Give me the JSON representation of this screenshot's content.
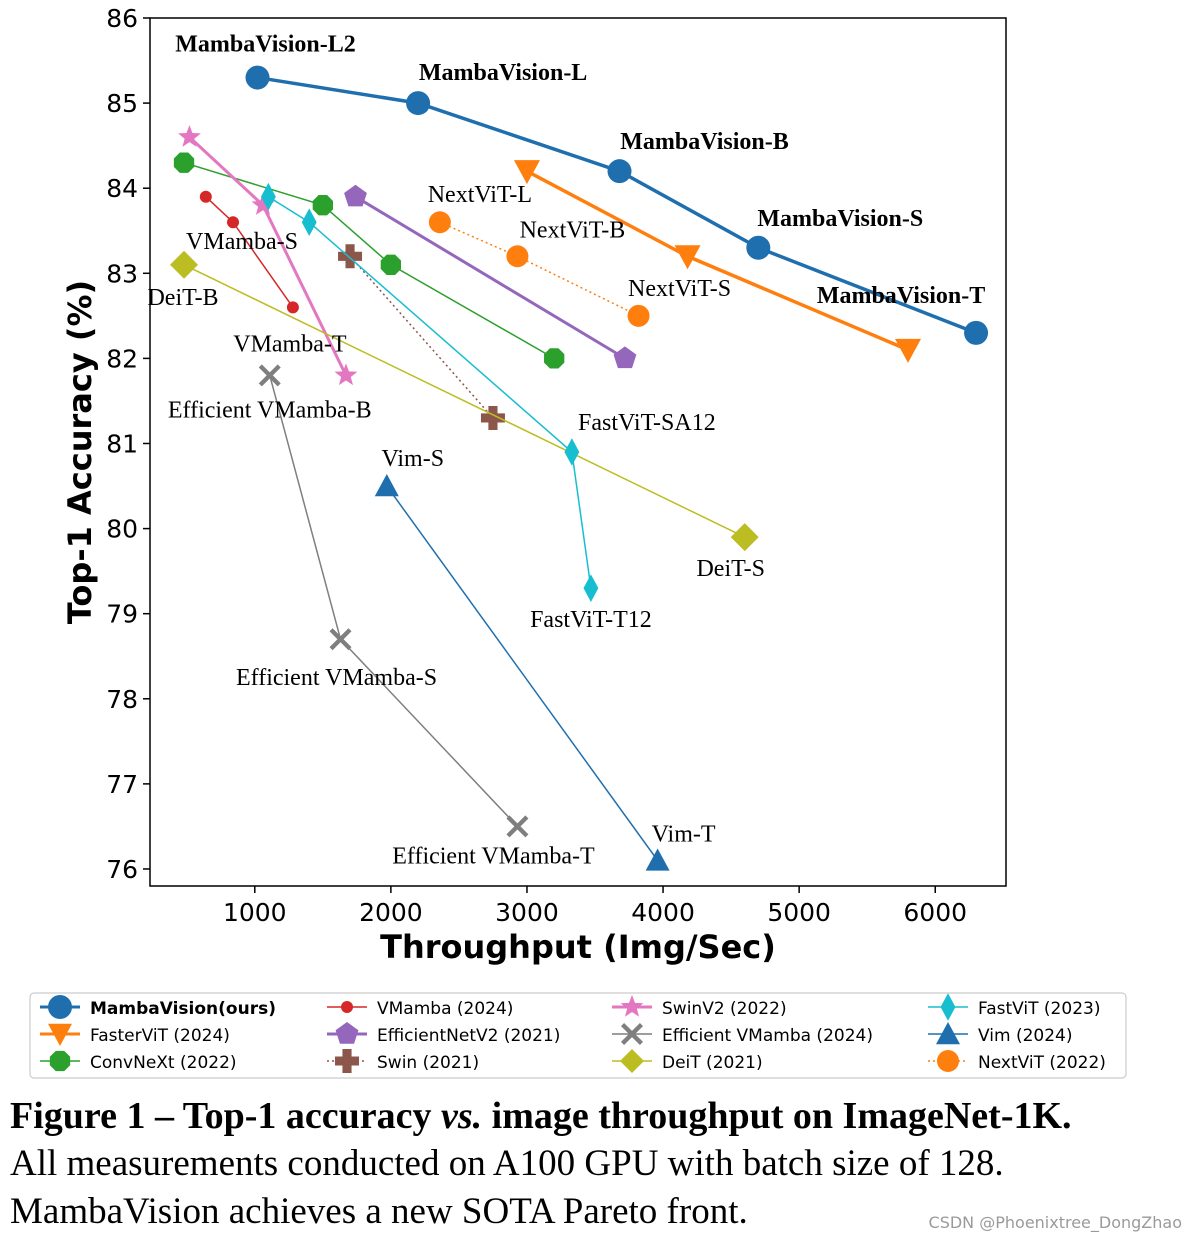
{
  "chart_data": {
    "type": "line",
    "xlabel": "Throughput (Img/Sec)",
    "ylabel": "Top-1 Accuracy (%)",
    "xlim": [
      230,
      6520
    ],
    "ylim": [
      75.8,
      86.0
    ],
    "xticks": [
      1000,
      2000,
      3000,
      4000,
      5000,
      6000
    ],
    "yticks": [
      76,
      77,
      78,
      79,
      80,
      81,
      82,
      83,
      84,
      85,
      86
    ],
    "grid": false,
    "legend_position": "bottom",
    "series": [
      {
        "name": "MambaVision(ours)",
        "color": "#1f6fae",
        "marker": "circle",
        "line": "solid",
        "lineWidth": 3.5,
        "markerSize": 12,
        "bold": true,
        "x": [
          1020,
          2200,
          3680,
          4700,
          6300
        ],
        "y": [
          85.3,
          85.0,
          84.2,
          83.3,
          82.3
        ],
        "labels": [
          "MambaVision-L2",
          "MambaVision-L",
          "MambaVision-B",
          "MambaVision-S",
          "MambaVision-T"
        ]
      },
      {
        "name": "FasterViT (2024)",
        "color": "#ff7f0e",
        "marker": "triangle-down",
        "line": "solid",
        "lineWidth": 3.5,
        "markerSize": 13,
        "bold": false,
        "x": [
          3000,
          4180,
          5800
        ],
        "y": [
          84.2,
          83.2,
          82.1
        ],
        "labels": []
      },
      {
        "name": "ConvNeXt (2022)",
        "color": "#2ca02c",
        "marker": "octagon",
        "line": "solid",
        "lineWidth": 1.5,
        "markerSize": 11,
        "bold": false,
        "x": [
          480,
          1500,
          2000,
          3200
        ],
        "y": [
          84.3,
          83.8,
          83.1,
          82.0
        ],
        "labels": []
      },
      {
        "name": "VMamba (2024)",
        "color": "#d62728",
        "marker": "circle",
        "line": "solid",
        "lineWidth": 1.5,
        "markerSize": 6,
        "bold": false,
        "x": [
          640,
          840,
          1280
        ],
        "y": [
          83.9,
          83.6,
          82.6
        ],
        "labels": [
          "",
          "VMamba-S",
          "VMamba-T"
        ]
      },
      {
        "name": "EfficientNetV2 (2021)",
        "color": "#9467bd",
        "marker": "pentagon",
        "line": "solid",
        "lineWidth": 3,
        "markerSize": 12,
        "bold": false,
        "x": [
          1740,
          3720
        ],
        "y": [
          83.9,
          82.0
        ],
        "labels": []
      },
      {
        "name": "Swin (2021)",
        "color": "#8c564b",
        "marker": "plus",
        "line": "dotted",
        "lineWidth": 1.5,
        "markerSize": 12,
        "bold": false,
        "x": [
          1700,
          2750
        ],
        "y": [
          83.2,
          81.3
        ],
        "labels": []
      },
      {
        "name": "SwinV2 (2022)",
        "color": "#e377c2",
        "marker": "star",
        "line": "solid",
        "lineWidth": 3,
        "markerSize": 12,
        "bold": false,
        "x": [
          520,
          1060,
          1670
        ],
        "y": [
          84.6,
          83.8,
          81.8
        ],
        "labels": []
      },
      {
        "name": "Efficient VMamba (2024)",
        "color": "#7f7f7f",
        "marker": "x",
        "line": "solid",
        "lineWidth": 1.5,
        "markerSize": 11,
        "bold": false,
        "x": [
          1110,
          1630,
          2930
        ],
        "y": [
          81.8,
          78.7,
          76.5
        ],
        "labels": [
          "Efficient VMamba-B",
          "Efficient VMamba-S",
          "Efficient VMamba-T"
        ]
      },
      {
        "name": "DeiT (2021)",
        "color": "#bcbd22",
        "marker": "diamond",
        "line": "solid",
        "lineWidth": 1.5,
        "markerSize": 14,
        "bold": false,
        "x": [
          480,
          4600
        ],
        "y": [
          83.1,
          79.9
        ],
        "labels": [
          "DeiT-B",
          "DeiT-S"
        ]
      },
      {
        "name": "FastViT (2023)",
        "color": "#17becf",
        "marker": "thin-diamond",
        "line": "solid",
        "lineWidth": 1.5,
        "markerSize": 12,
        "bold": false,
        "x": [
          1100,
          1400,
          3330,
          3470
        ],
        "y": [
          83.9,
          83.6,
          80.9,
          79.3
        ],
        "labels": [
          "",
          "",
          "FastViT-SA12",
          "FastViT-T12"
        ]
      },
      {
        "name": "Vim (2024)",
        "color": "#1f6fae",
        "marker": "triangle-up",
        "line": "solid",
        "lineWidth": 1.5,
        "markerSize": 12,
        "bold": false,
        "x": [
          1970,
          3960
        ],
        "y": [
          80.5,
          76.1
        ],
        "labels": [
          "Vim-S",
          "Vim-T"
        ]
      },
      {
        "name": "NextViT (2022)",
        "color": "#ff7f0e",
        "marker": "circle",
        "line": "dotted",
        "lineWidth": 1.5,
        "markerSize": 11,
        "bold": false,
        "x": [
          2360,
          2930,
          3820
        ],
        "y": [
          83.6,
          83.2,
          82.5
        ],
        "labels": [
          "NextViT-L",
          "NextViT-B",
          "NextViT-S"
        ]
      }
    ]
  },
  "caption": {
    "line1": "Figure 1 – Top-1 accuracy vs. image throughput on ImageNet-1K.",
    "line2": "All measurements conducted on A100 GPU with batch size of 128.",
    "line3": "MambaVision achieves a new SOTA Pareto front."
  },
  "watermark": "CSDN @Phoenixtree_DongZhao"
}
